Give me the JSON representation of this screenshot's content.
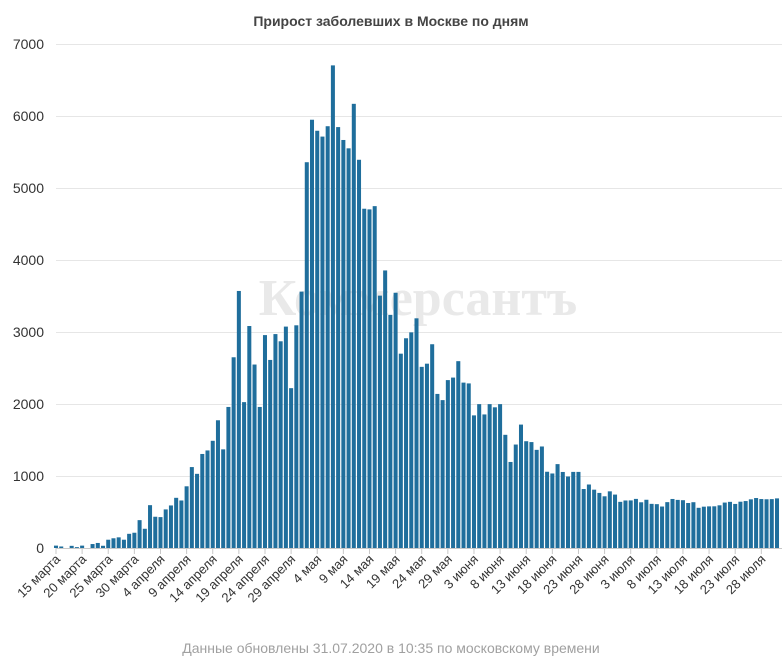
{
  "chart_data": {
    "type": "bar",
    "title": "Прирост заболевших в Москве по дням",
    "footer": "Данные обновлены 31.07.2020 в 10:35 по московскому времени",
    "watermark": "Коммерсантъ",
    "ylim": [
      0,
      7000
    ],
    "y_ticks": [
      "0",
      "1000",
      "2000",
      "3000",
      "4000",
      "5000",
      "6000",
      "7000"
    ],
    "x_tick_labels": [
      "15 марта",
      "20 марта",
      "25 марта",
      "30 марта",
      "4 апреля",
      "9 апреля",
      "14 апреля",
      "19 апреля",
      "24 апреля",
      "29 апреля",
      "4 мая",
      "9 мая",
      "14 мая",
      "19 мая",
      "24 мая",
      "29 мая",
      "3 июня",
      "8 июня",
      "13 июня",
      "18 июня",
      "23 июня",
      "28 июня",
      "3 июля",
      "8 июля",
      "13 июля",
      "18 июля",
      "23 июля",
      "28 июля"
    ],
    "first_date": "15 марта",
    "last_date": "30 июля",
    "bar_color": "#1f6e9c",
    "grid": true,
    "values": [
      33,
      21,
      0,
      30,
      12,
      33,
      0,
      55,
      70,
      31,
      115,
      135,
      148,
      115,
      197,
      212,
      387,
      267,
      595,
      434,
      429,
      536,
      591,
      697,
      660,
      857,
      1124,
      1030,
      1306,
      1355,
      1489,
      1774,
      1370,
      1959,
      2649,
      3570,
      2026,
      3083,
      2548,
      1959,
      2957,
      2612,
      2971,
      2871,
      3075,
      2220,
      3093,
      3561,
      5358,
      5948,
      5795,
      5714,
      5858,
      6703,
      5846,
      5667,
      5551,
      6169,
      5392,
      4712,
      4703,
      4748,
      3505,
      3855,
      3238,
      3545,
      2699,
      2913,
      2995,
      3190,
      2516,
      2560,
      2830,
      2140,
      2054,
      2332,
      2367,
      2595,
      2297,
      2286,
      1842,
      1998,
      1855,
      1998,
      1954,
      1998,
      1572,
      1195,
      1437,
      1714,
      1483,
      1471,
      1363,
      1410,
      1059,
      1035,
      1165,
      1056,
      993,
      1057,
      1057,
      819,
      882,
      810,
      765,
      718,
      787,
      742,
      641,
      660,
      661,
      682,
      635,
      670,
      613,
      609,
      576,
      637,
      681,
      668,
      664,
      625,
      636,
      558,
      574,
      578,
      579,
      593,
      631,
      641,
      612,
      643,
      652,
      676,
      694,
      680,
      677,
      679,
      689
    ]
  }
}
